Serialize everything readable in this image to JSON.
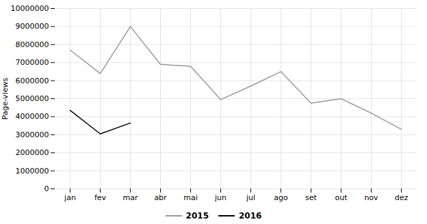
{
  "chart_data": {
    "type": "line",
    "categories": [
      "jan",
      "fev",
      "mar",
      "abr",
      "mai",
      "jun",
      "jul",
      "ago",
      "set",
      "out",
      "nov",
      "dez"
    ],
    "series": [
      {
        "name": "2015",
        "color": "#999999",
        "values": [
          7700000,
          6400000,
          9000000,
          6900000,
          6800000,
          4950000,
          5700000,
          6500000,
          4750000,
          5000000,
          4200000,
          3300000
        ]
      },
      {
        "name": "2016",
        "color": "#000000",
        "values": [
          4350000,
          3050000,
          3650000,
          null,
          null,
          null,
          null,
          null,
          null,
          null,
          null,
          null
        ]
      }
    ],
    "y_label": "Page-views",
    "ylim": [
      0,
      10000000
    ],
    "yticks": [
      0,
      1000000,
      2000000,
      3000000,
      4000000,
      5000000,
      6000000,
      7000000,
      8000000,
      9000000,
      10000000
    ],
    "grid": true,
    "legend": "bottom"
  }
}
